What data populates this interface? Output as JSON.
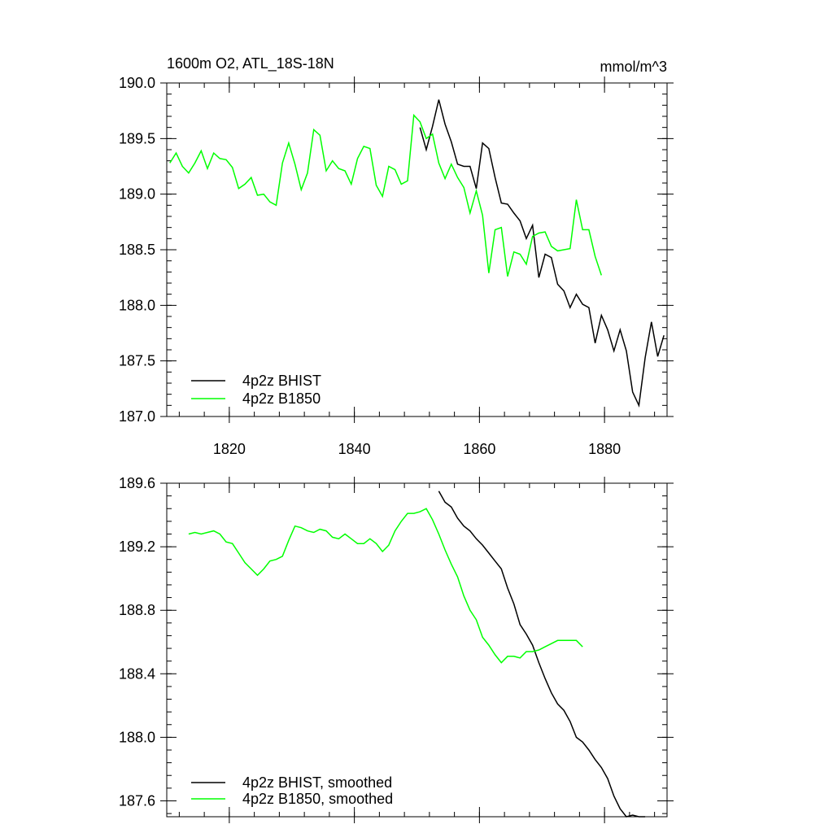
{
  "chart_data": [
    {
      "type": "line",
      "title": "1600m O2, ATL_18S-18N",
      "subtitle": "mmol/m^3",
      "xlim": [
        1810,
        1890
      ],
      "xticks": [
        1820,
        1840,
        1860,
        1880
      ],
      "ylim": [
        187,
        190
      ],
      "yticks": [
        {
          "value": 187,
          "label": "187.0"
        },
        187.5,
        {
          "value": 188,
          "label": "188.0"
        },
        188.5,
        {
          "value": 189,
          "label": "189.0"
        },
        189.5,
        {
          "value": 190,
          "label": "190.0"
        }
      ],
      "legend": "lower left",
      "series": [
        {
          "name": "4p2z BHIST",
          "color": "#000000",
          "x": [
            1850.5,
            1851.5,
            1852.5,
            1853.5,
            1854.5,
            1855.5,
            1856.5,
            1857.5,
            1858.5,
            1859.5,
            1860.5,
            1861.5,
            1862.5,
            1863.5,
            1864.5,
            1865.5,
            1866.5,
            1867.5,
            1868.5,
            1869.5,
            1870.5,
            1871.5,
            1872.5,
            1873.5,
            1874.5,
            1875.5,
            1876.5,
            1877.5,
            1878.5,
            1879.5,
            1880.5,
            1881.5,
            1882.5,
            1883.5,
            1884.5,
            1885.5,
            1886.5,
            1887.5,
            1888.5,
            1889.5
          ],
          "values": [
            189.6,
            189.4,
            189.61,
            189.85,
            189.63,
            189.47,
            189.27,
            189.25,
            189.25,
            189.05,
            189.46,
            189.41,
            189.15,
            188.92,
            188.91,
            188.83,
            188.76,
            188.6,
            188.72,
            188.25,
            188.46,
            188.43,
            188.19,
            188.13,
            187.98,
            188.1,
            188.01,
            187.98,
            187.66,
            187.91,
            187.78,
            187.59,
            187.78,
            187.59,
            187.22,
            187.1,
            187.53,
            187.85,
            187.54,
            187.73
          ]
        },
        {
          "name": "4p2z B1850",
          "color": "#00ff00",
          "x": [
            1810.5,
            1811.5,
            1812.5,
            1813.5,
            1814.5,
            1815.5,
            1816.5,
            1817.5,
            1818.5,
            1819.5,
            1820.5,
            1821.5,
            1822.5,
            1823.5,
            1824.5,
            1825.5,
            1826.5,
            1827.5,
            1828.5,
            1829.5,
            1830.5,
            1831.5,
            1832.5,
            1833.5,
            1834.5,
            1835.5,
            1836.5,
            1837.5,
            1838.5,
            1839.5,
            1840.5,
            1841.5,
            1842.5,
            1843.5,
            1844.5,
            1845.5,
            1846.5,
            1847.5,
            1848.5,
            1849.5,
            1850.5,
            1851.5,
            1852.5,
            1853.5,
            1854.5,
            1855.5,
            1856.5,
            1857.5,
            1858.5,
            1859.5,
            1860.5,
            1861.5,
            1862.5,
            1863.5,
            1864.5,
            1865.5,
            1866.5,
            1867.5,
            1868.5,
            1869.5,
            1870.5,
            1871.5,
            1872.5,
            1873.5,
            1874.5,
            1875.5,
            1876.5,
            1877.5,
            1878.5,
            1879.5
          ],
          "values": [
            189.28,
            189.37,
            189.25,
            189.19,
            189.28,
            189.39,
            189.23,
            189.37,
            189.32,
            189.31,
            189.24,
            189.05,
            189.09,
            189.15,
            188.99,
            189.0,
            188.93,
            188.9,
            189.28,
            189.46,
            189.27,
            189.04,
            189.19,
            189.58,
            189.53,
            189.21,
            189.3,
            189.23,
            189.21,
            189.09,
            189.32,
            189.43,
            189.41,
            189.08,
            188.98,
            189.25,
            189.22,
            189.09,
            189.12,
            189.71,
            189.65,
            189.5,
            189.54,
            189.28,
            189.14,
            189.27,
            189.15,
            189.06,
            188.83,
            189.03,
            188.81,
            188.29,
            188.68,
            188.7,
            188.26,
            188.48,
            188.46,
            188.37,
            188.62,
            188.65,
            188.66,
            188.53,
            188.49,
            188.5,
            188.51,
            188.95,
            188.68,
            188.68,
            188.44,
            188.27
          ]
        }
      ]
    },
    {
      "type": "line",
      "xlim": [
        1810,
        1890
      ],
      "xticks": [
        1820,
        1840,
        1860,
        1880
      ],
      "ylim": [
        187.5,
        189.6
      ],
      "yticks": [
        187.6,
        {
          "value": 188,
          "label": "188.0"
        },
        188.4,
        188.8,
        189.2,
        189.6
      ],
      "legend": "lower left",
      "series": [
        {
          "name": "4p2z BHIST, smoothed",
          "color": "#000000",
          "x": [
            1853.5,
            1854.5,
            1855.5,
            1856.5,
            1857.5,
            1858.5,
            1859.5,
            1860.5,
            1861.5,
            1862.5,
            1863.5,
            1864.5,
            1865.5,
            1866.5,
            1867.5,
            1868.5,
            1869.5,
            1870.5,
            1871.5,
            1872.5,
            1873.5,
            1874.5,
            1875.5,
            1876.5,
            1877.5,
            1878.5,
            1879.5,
            1880.5,
            1881.5,
            1882.5,
            1883.5,
            1884.5,
            1885.5,
            1886.5
          ],
          "values": [
            189.55,
            189.48,
            189.45,
            189.38,
            189.33,
            189.3,
            189.25,
            189.21,
            189.16,
            189.11,
            189.06,
            188.94,
            188.84,
            188.71,
            188.65,
            188.58,
            188.47,
            188.37,
            188.28,
            188.21,
            188.17,
            188.1,
            188.0,
            187.97,
            187.92,
            187.86,
            187.81,
            187.74,
            187.63,
            187.55,
            187.5,
            187.51,
            187.5,
            187.5
          ]
        },
        {
          "name": "4p2z B1850, smoothed",
          "color": "#00ff00",
          "x": [
            1813.5,
            1814.5,
            1815.5,
            1816.5,
            1817.5,
            1818.5,
            1819.5,
            1820.5,
            1821.5,
            1822.5,
            1823.5,
            1824.5,
            1825.5,
            1826.5,
            1827.5,
            1828.5,
            1829.5,
            1830.5,
            1831.5,
            1832.5,
            1833.5,
            1834.5,
            1835.5,
            1836.5,
            1837.5,
            1838.5,
            1839.5,
            1840.5,
            1841.5,
            1842.5,
            1843.5,
            1844.5,
            1845.5,
            1846.5,
            1847.5,
            1848.5,
            1849.5,
            1850.5,
            1851.5,
            1852.5,
            1853.5,
            1854.5,
            1855.5,
            1856.5,
            1857.5,
            1858.5,
            1859.5,
            1860.5,
            1861.5,
            1862.5,
            1863.5,
            1864.5,
            1865.5,
            1866.5,
            1867.5,
            1868.5,
            1869.5,
            1870.5,
            1871.5,
            1872.5,
            1873.5,
            1874.5,
            1875.5,
            1876.5
          ],
          "values": [
            189.28,
            189.29,
            189.28,
            189.29,
            189.3,
            189.28,
            189.23,
            189.22,
            189.16,
            189.1,
            189.06,
            189.02,
            189.06,
            189.11,
            189.12,
            189.14,
            189.24,
            189.33,
            189.32,
            189.3,
            189.29,
            189.31,
            189.3,
            189.26,
            189.25,
            189.28,
            189.25,
            189.22,
            189.22,
            189.25,
            189.22,
            189.17,
            189.21,
            189.3,
            189.36,
            189.41,
            189.41,
            189.42,
            189.44,
            189.37,
            189.28,
            189.18,
            189.09,
            189.01,
            188.89,
            188.8,
            188.74,
            188.63,
            188.58,
            188.52,
            188.47,
            188.51,
            188.51,
            188.5,
            188.54,
            188.54,
            188.55,
            188.57,
            188.59,
            188.61,
            188.61,
            188.61,
            188.61,
            188.57
          ]
        }
      ]
    }
  ]
}
